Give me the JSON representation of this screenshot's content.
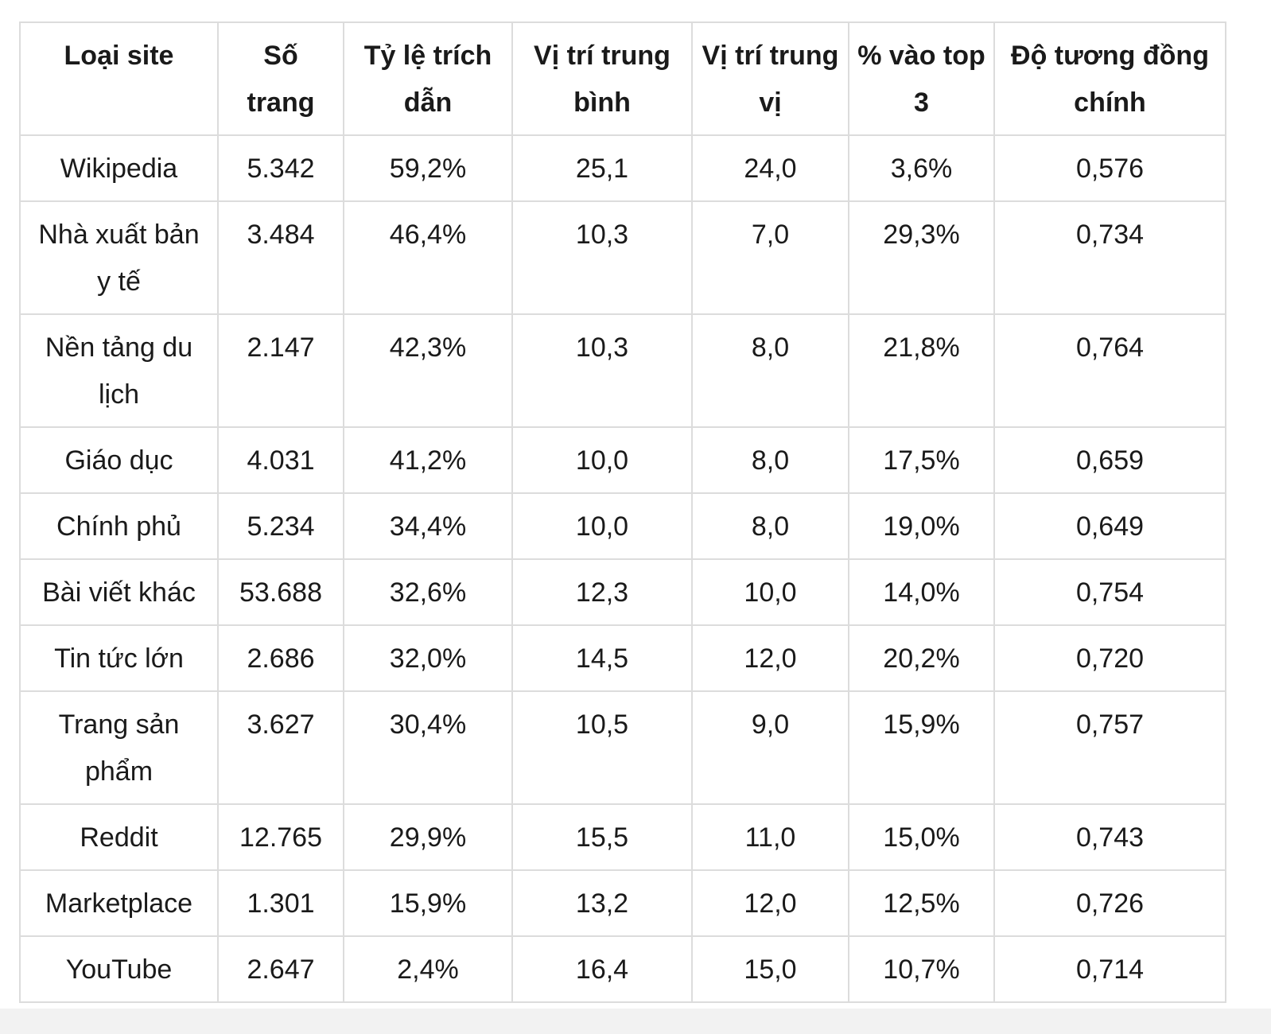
{
  "table": {
    "headers": [
      "Loại site",
      "Số trang",
      "Tỷ lệ trích dẫn",
      "Vị trí trung bình",
      "Vị trí trung vị",
      "% vào top 3",
      "Độ tương đồng chính"
    ],
    "rows": [
      [
        "Wikipedia",
        "5.342",
        "59,2%",
        "25,1",
        "24,0",
        "3,6%",
        "0,576"
      ],
      [
        "Nhà xuất bản y tế",
        "3.484",
        "46,4%",
        "10,3",
        "7,0",
        "29,3%",
        "0,734"
      ],
      [
        "Nền tảng du lịch",
        "2.147",
        "42,3%",
        "10,3",
        "8,0",
        "21,8%",
        "0,764"
      ],
      [
        "Giáo dục",
        "4.031",
        "41,2%",
        "10,0",
        "8,0",
        "17,5%",
        "0,659"
      ],
      [
        "Chính phủ",
        "5.234",
        "34,4%",
        "10,0",
        "8,0",
        "19,0%",
        "0,649"
      ],
      [
        "Bài viết khác",
        "53.688",
        "32,6%",
        "12,3",
        "10,0",
        "14,0%",
        "0,754"
      ],
      [
        "Tin tức lớn",
        "2.686",
        "32,0%",
        "14,5",
        "12,0",
        "20,2%",
        "0,720"
      ],
      [
        "Trang sản phẩm",
        "3.627",
        "30,4%",
        "10,5",
        "9,0",
        "15,9%",
        "0,757"
      ],
      [
        "Reddit",
        "12.765",
        "29,9%",
        "15,5",
        "11,0",
        "15,0%",
        "0,743"
      ],
      [
        "Marketplace",
        "1.301",
        "15,9%",
        "13,2",
        "12,0",
        "12,5%",
        "0,726"
      ],
      [
        "YouTube",
        "2.647",
        "2,4%",
        "16,4",
        "15,0",
        "10,7%",
        "0,714"
      ]
    ]
  }
}
